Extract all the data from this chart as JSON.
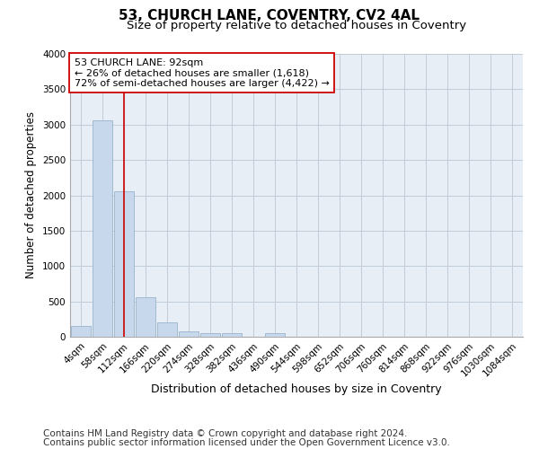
{
  "title_line1": "53, CHURCH LANE, COVENTRY, CV2 4AL",
  "title_line2": "Size of property relative to detached houses in Coventry",
  "xlabel": "Distribution of detached houses by size in Coventry",
  "ylabel": "Number of detached properties",
  "bar_color": "#c8d8ec",
  "bar_edge_color": "#9ab4cc",
  "vline_color": "#cc0000",
  "annotation_text": "53 CHURCH LANE: 92sqm\n← 26% of detached houses are smaller (1,618)\n72% of semi-detached houses are larger (4,422) →",
  "annotation_box_color": "#ffffff",
  "annotation_box_edge": "#cc0000",
  "categories": [
    "4sqm",
    "58sqm",
    "112sqm",
    "166sqm",
    "220sqm",
    "274sqm",
    "328sqm",
    "382sqm",
    "436sqm",
    "490sqm",
    "544sqm",
    "598sqm",
    "652sqm",
    "706sqm",
    "760sqm",
    "814sqm",
    "868sqm",
    "922sqm",
    "976sqm",
    "1030sqm",
    "1084sqm"
  ],
  "bar_heights": [
    150,
    3060,
    2060,
    560,
    200,
    75,
    50,
    50,
    0,
    50,
    0,
    0,
    0,
    0,
    0,
    0,
    0,
    0,
    0,
    0,
    0
  ],
  "ylim": [
    0,
    4000
  ],
  "yticks": [
    0,
    500,
    1000,
    1500,
    2000,
    2500,
    3000,
    3500,
    4000
  ],
  "footer_line1": "Contains HM Land Registry data © Crown copyright and database right 2024.",
  "footer_line2": "Contains public sector information licensed under the Open Government Licence v3.0.",
  "bg_color": "#ffffff",
  "plot_bg_color": "#e8eef5",
  "grid_color": "#c0ccd8",
  "title_fontsize": 11,
  "subtitle_fontsize": 9.5,
  "tick_fontsize": 7.5,
  "ylabel_fontsize": 8.5,
  "xlabel_fontsize": 9,
  "footer_fontsize": 7.5,
  "vline_x": 2.0
}
